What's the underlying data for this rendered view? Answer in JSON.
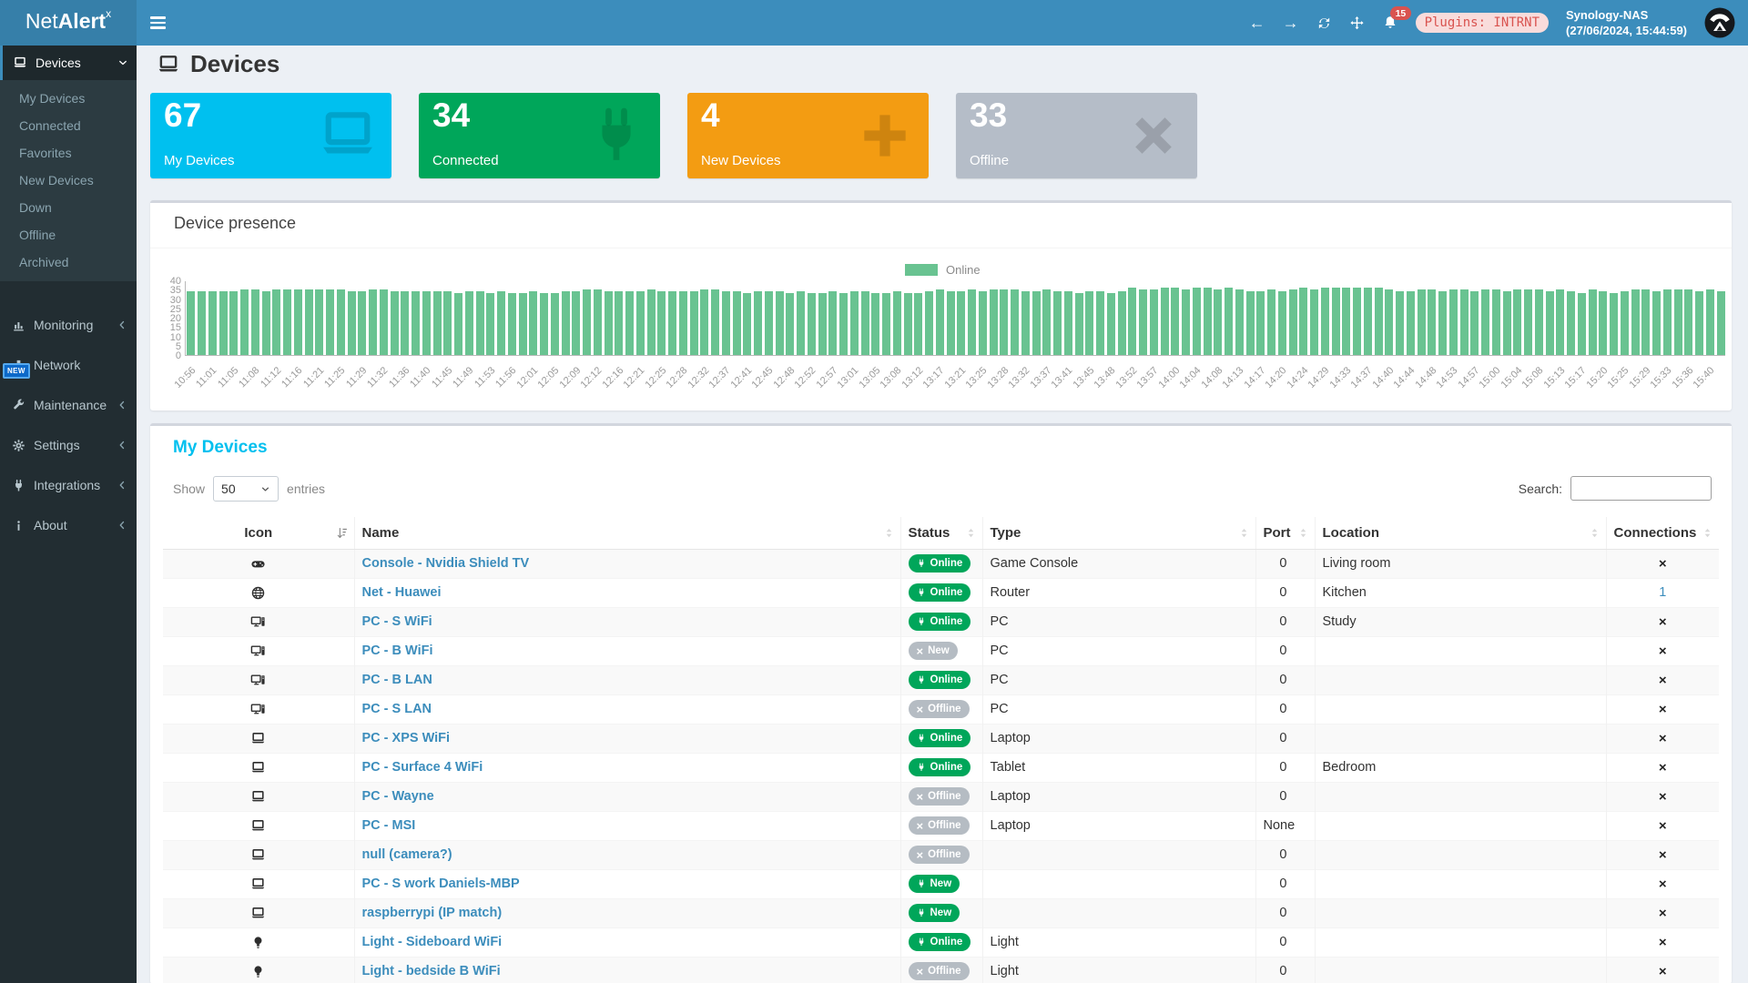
{
  "brand": {
    "net": "Net",
    "alert": "Alert",
    "sup": "x"
  },
  "header": {
    "notifications_count": "15",
    "plugins_badge": "Plugins: INTRNT",
    "host_name": "Synology-NAS",
    "host_time": "(27/06/2024, 15:44:59)"
  },
  "colors": {
    "navbar": "#3c8dbc",
    "logo_bg": "#367fa9",
    "sidebar_bg": "#222d32",
    "submenu_bg": "#2c3b41",
    "accent_link": "#3c8dbc",
    "panel_title_cyan": "#00c0ef",
    "badge_green": "#00a65a",
    "badge_gray": "#b5bcc3",
    "card_aqua": "#00c0ef",
    "card_green": "#00a65a",
    "card_orange": "#f39c12",
    "card_gray": "#b5bdc8",
    "bar_green": "#69c391",
    "notification_red": "#d9534f"
  },
  "sidebar": {
    "active": {
      "label": "Devices",
      "icon": "laptop-icon"
    },
    "submenu": [
      "My Devices",
      "Connected",
      "Favorites",
      "New Devices",
      "Down",
      "Offline",
      "Archived"
    ],
    "items": [
      {
        "label": "Monitoring",
        "icon": "bar-chart-icon",
        "chevron": true
      },
      {
        "label": "Network",
        "icon": "sitemap-icon",
        "chevron": false
      },
      {
        "label": "Maintenance",
        "icon": "wrench-icon",
        "chevron": true,
        "badge": "NEW"
      },
      {
        "label": "Settings",
        "icon": "gear-icon",
        "chevron": true
      },
      {
        "label": "Integrations",
        "icon": "plug-icon",
        "chevron": true
      },
      {
        "label": "About",
        "icon": "info-icon",
        "chevron": true
      }
    ]
  },
  "page": {
    "title": "Devices"
  },
  "cards": [
    {
      "value": "67",
      "label": "My Devices",
      "color": "#00c0ef",
      "icon": "laptop-icon"
    },
    {
      "value": "34",
      "label": "Connected",
      "color": "#00a65a",
      "icon": "plug-icon"
    },
    {
      "value": "4",
      "label": "New Devices",
      "color": "#f39c12",
      "icon": "plus-icon"
    },
    {
      "value": "33",
      "label": "Offline",
      "color": "#b5bdc8",
      "icon": "x-icon"
    }
  ],
  "chart_data": {
    "type": "bar",
    "title": "Device presence",
    "xlabel": "",
    "ylabel": "",
    "legend": {
      "label": "Online",
      "color": "#69c391",
      "position": "top"
    },
    "grid": false,
    "ylim": [
      0,
      40
    ],
    "yticks": [
      40,
      35,
      30,
      25,
      20,
      15,
      10,
      5,
      0
    ],
    "label_every": 2,
    "labels": [
      "10:56",
      "11:01",
      "11:05",
      "11:08",
      "11:12",
      "11:16",
      "11:21",
      "11:25",
      "11:29",
      "11:32",
      "11:36",
      "11:40",
      "11:45",
      "11:49",
      "11:53",
      "11:56",
      "12:01",
      "12:05",
      "12:09",
      "12:12",
      "12:16",
      "12:21",
      "12:25",
      "12:28",
      "12:32",
      "12:37",
      "12:41",
      "12:45",
      "12:48",
      "12:52",
      "12:57",
      "13:01",
      "13:05",
      "13:08",
      "13:12",
      "13:17",
      "13:21",
      "13:25",
      "13:28",
      "13:32",
      "13:37",
      "13:41",
      "13:45",
      "13:48",
      "13:52",
      "13:57",
      "14:00",
      "14:04",
      "14:08",
      "14:13",
      "14:17",
      "14:20",
      "14:24",
      "14:29",
      "14:33",
      "14:37",
      "14:40",
      "14:44",
      "14:48",
      "14:53",
      "14:57",
      "15:00",
      "15:04",
      "15:08",
      "15:13",
      "15:17",
      "15:20",
      "15:25",
      "15:29",
      "15:33",
      "15:36",
      "15:40"
    ],
    "values": [
      34,
      34,
      34,
      34,
      34,
      35,
      35,
      34,
      35,
      35,
      35,
      35,
      35,
      35,
      35,
      34,
      34,
      35,
      35,
      34,
      34,
      34,
      34,
      34,
      34,
      33,
      34,
      34,
      33,
      34,
      33,
      33,
      34,
      33,
      33,
      34,
      34,
      35,
      35,
      34,
      34,
      34,
      34,
      35,
      34,
      34,
      34,
      34,
      35,
      35,
      34,
      34,
      33,
      34,
      34,
      34,
      33,
      34,
      33,
      33,
      34,
      33,
      34,
      34,
      33,
      33,
      34,
      33,
      33,
      34,
      35,
      34,
      34,
      35,
      34,
      35,
      35,
      35,
      34,
      34,
      35,
      34,
      34,
      33,
      34,
      34,
      33,
      34,
      36,
      35,
      35,
      36,
      36,
      35,
      36,
      36,
      35,
      36,
      35,
      34,
      34,
      35,
      34,
      35,
      36,
      35,
      36,
      36,
      36,
      36,
      36,
      36,
      35,
      34,
      34,
      35,
      35,
      34,
      35,
      35,
      34,
      35,
      35,
      34,
      35,
      35,
      35,
      34,
      35,
      34,
      33,
      35,
      34,
      33,
      34,
      35,
      35,
      34,
      35,
      35,
      35,
      34,
      35,
      34
    ]
  },
  "table": {
    "title": "My Devices",
    "show_label": "Show",
    "page_size": "50",
    "entries_label": "entries",
    "search_label": "Search:",
    "search_value": "",
    "headers": [
      "Icon",
      "Name",
      "Status",
      "Type",
      "Port",
      "Location",
      "Connections"
    ],
    "rows": [
      {
        "icon": "gamepad-icon",
        "name": "Console - Nvidia Shield TV",
        "status": "Online",
        "status_kind": "online",
        "type": "Game Console",
        "port": "0",
        "location": "Living room",
        "connections": "×",
        "connections_link": false
      },
      {
        "icon": "globe-icon",
        "name": "Net - Huawei",
        "status": "Online",
        "status_kind": "online",
        "type": "Router",
        "port": "0",
        "location": "Kitchen",
        "connections": "1",
        "connections_link": true
      },
      {
        "icon": "desktop-icon",
        "name": "PC - S WiFi",
        "status": "Online",
        "status_kind": "online",
        "type": "PC",
        "port": "0",
        "location": "Study",
        "connections": "×",
        "connections_link": false
      },
      {
        "icon": "desktop-icon",
        "name": "PC - B WiFi",
        "status": "New",
        "status_kind": "new-offline",
        "type": "PC",
        "port": "0",
        "location": "",
        "connections": "×",
        "connections_link": false
      },
      {
        "icon": "desktop-icon",
        "name": "PC - B LAN",
        "status": "Online",
        "status_kind": "online",
        "type": "PC",
        "port": "0",
        "location": "",
        "connections": "×",
        "connections_link": false
      },
      {
        "icon": "desktop-icon",
        "name": "PC - S LAN",
        "status": "Offline",
        "status_kind": "offline",
        "type": "PC",
        "port": "0",
        "location": "",
        "connections": "×",
        "connections_link": false
      },
      {
        "icon": "laptop-icon",
        "name": "PC - XPS WiFi",
        "status": "Online",
        "status_kind": "online",
        "type": "Laptop",
        "port": "0",
        "location": "",
        "connections": "×",
        "connections_link": false
      },
      {
        "icon": "laptop-icon",
        "name": "PC - Surface 4 WiFi",
        "status": "Online",
        "status_kind": "online",
        "type": "Tablet",
        "port": "0",
        "location": "Bedroom",
        "connections": "×",
        "connections_link": false
      },
      {
        "icon": "laptop-icon",
        "name": "PC - Wayne",
        "status": "Offline",
        "status_kind": "offline",
        "type": "Laptop",
        "port": "0",
        "location": "",
        "connections": "×",
        "connections_link": false
      },
      {
        "icon": "laptop-icon",
        "name": "PC - MSI",
        "status": "Offline",
        "status_kind": "offline",
        "type": "Laptop",
        "port": "None",
        "location": "",
        "connections": "×",
        "connections_link": false
      },
      {
        "icon": "laptop-icon",
        "name": "null (camera?)",
        "status": "Offline",
        "status_kind": "offline",
        "type": "",
        "port": "0",
        "location": "",
        "connections": "×",
        "connections_link": false
      },
      {
        "icon": "laptop-icon",
        "name": "PC - S work Daniels-MBP",
        "status": "New",
        "status_kind": "new-online",
        "type": "",
        "port": "0",
        "location": "",
        "connections": "×",
        "connections_link": false
      },
      {
        "icon": "laptop-icon",
        "name": "raspberrypi (IP match)",
        "status": "New",
        "status_kind": "new-online",
        "type": "",
        "port": "0",
        "location": "",
        "connections": "×",
        "connections_link": false
      },
      {
        "icon": "lightbulb-icon",
        "name": "Light - Sideboard WiFi",
        "status": "Online",
        "status_kind": "online",
        "type": "Light",
        "port": "0",
        "location": "",
        "connections": "×",
        "connections_link": false
      },
      {
        "icon": "lightbulb-icon",
        "name": "Light - bedside B WiFi",
        "status": "Offline",
        "status_kind": "offline",
        "type": "Light",
        "port": "0",
        "location": "",
        "connections": "×",
        "connections_link": false
      }
    ]
  }
}
